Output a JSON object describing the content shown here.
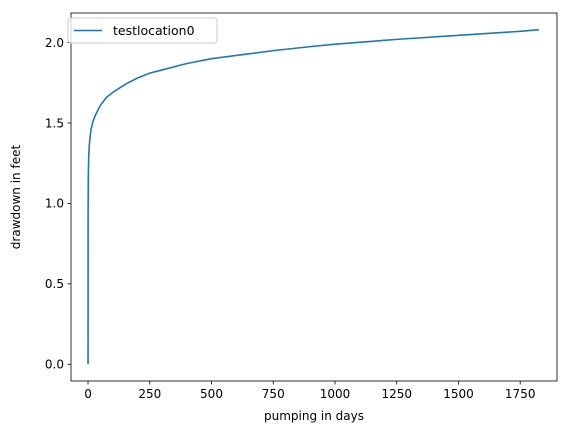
{
  "chart_data": {
    "type": "line",
    "xlabel": "pumping in days",
    "ylabel": "drawdown in feet",
    "xlim": [
      -69,
      1899
    ],
    "ylim": [
      -0.104,
      2.184
    ],
    "xticks": [
      0,
      250,
      500,
      750,
      1000,
      1250,
      1500,
      1750
    ],
    "yticks": [
      0.0,
      0.5,
      1.0,
      1.5,
      2.0
    ],
    "xtick_labels": [
      "0",
      "250",
      "500",
      "750",
      "1000",
      "1250",
      "1500",
      "1750"
    ],
    "ytick_labels": [
      "0.0",
      "0.5",
      "1.0",
      "1.5",
      "2.0"
    ],
    "grid": false,
    "legend_position": "upper-left",
    "series": [
      {
        "name": "testlocation0",
        "color": "#1f77b4",
        "x": [
          0,
          0.3,
          1,
          2,
          3,
          5,
          8,
          12,
          20,
          30,
          50,
          75,
          100,
          150,
          200,
          250,
          300,
          400,
          500,
          600,
          750,
          900,
          1000,
          1250,
          1500,
          1750,
          1826
        ],
        "y": [
          0.0,
          0.95,
          1.15,
          1.24,
          1.3,
          1.36,
          1.41,
          1.46,
          1.51,
          1.55,
          1.61,
          1.66,
          1.69,
          1.74,
          1.78,
          1.81,
          1.83,
          1.87,
          1.9,
          1.92,
          1.95,
          1.975,
          1.99,
          2.02,
          2.045,
          2.07,
          2.08
        ]
      }
    ]
  }
}
